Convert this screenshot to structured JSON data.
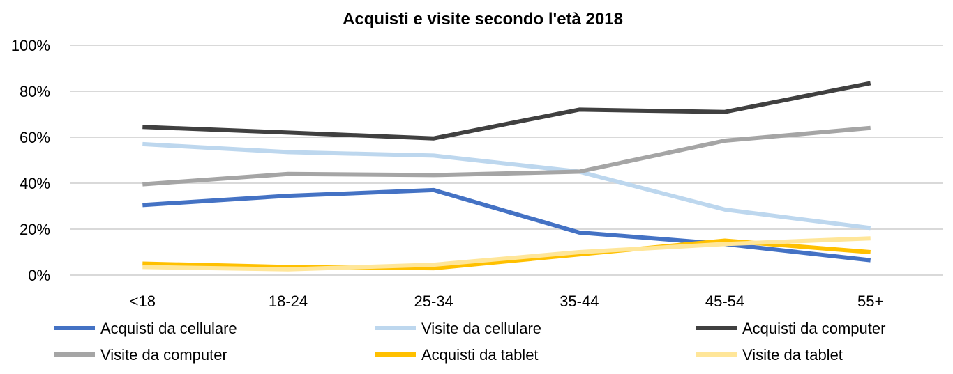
{
  "chart_data": {
    "type": "line",
    "title": "Acquisti e visite secondo l'età 2018",
    "xlabel": "",
    "ylabel": "",
    "categories": [
      "<18",
      "18-24",
      "25-34",
      "35-44",
      "45-54",
      "55+"
    ],
    "ylim": [
      0,
      100
    ],
    "yticks": [
      "0%",
      "20%",
      "40%",
      "60%",
      "80%",
      "100%"
    ],
    "grid": true,
    "legend_position": "bottom",
    "series": [
      {
        "name": "Acquisti da cellulare",
        "color": "#4472C4",
        "values": [
          30.5,
          34.5,
          37,
          18.5,
          13.5,
          6.5
        ]
      },
      {
        "name": "Visite da cellulare",
        "color": "#BDD7EE",
        "values": [
          57,
          53.5,
          52,
          45,
          28.5,
          20.5
        ]
      },
      {
        "name": "Acquisti da computer",
        "color": "#404040",
        "values": [
          64.5,
          62,
          59.5,
          72,
          71,
          83.5
        ]
      },
      {
        "name": "Visite da computer",
        "color": "#A5A5A5",
        "values": [
          39.5,
          44,
          43.5,
          45,
          58.5,
          64
        ]
      },
      {
        "name": "Acquisti da tablet",
        "color": "#FFC000",
        "values": [
          5,
          3.5,
          3,
          9,
          15,
          10
        ]
      },
      {
        "name": "Visite da tablet",
        "color": "#FFE699",
        "values": [
          3.5,
          2.5,
          4.5,
          10,
          13.5,
          16
        ]
      }
    ]
  }
}
